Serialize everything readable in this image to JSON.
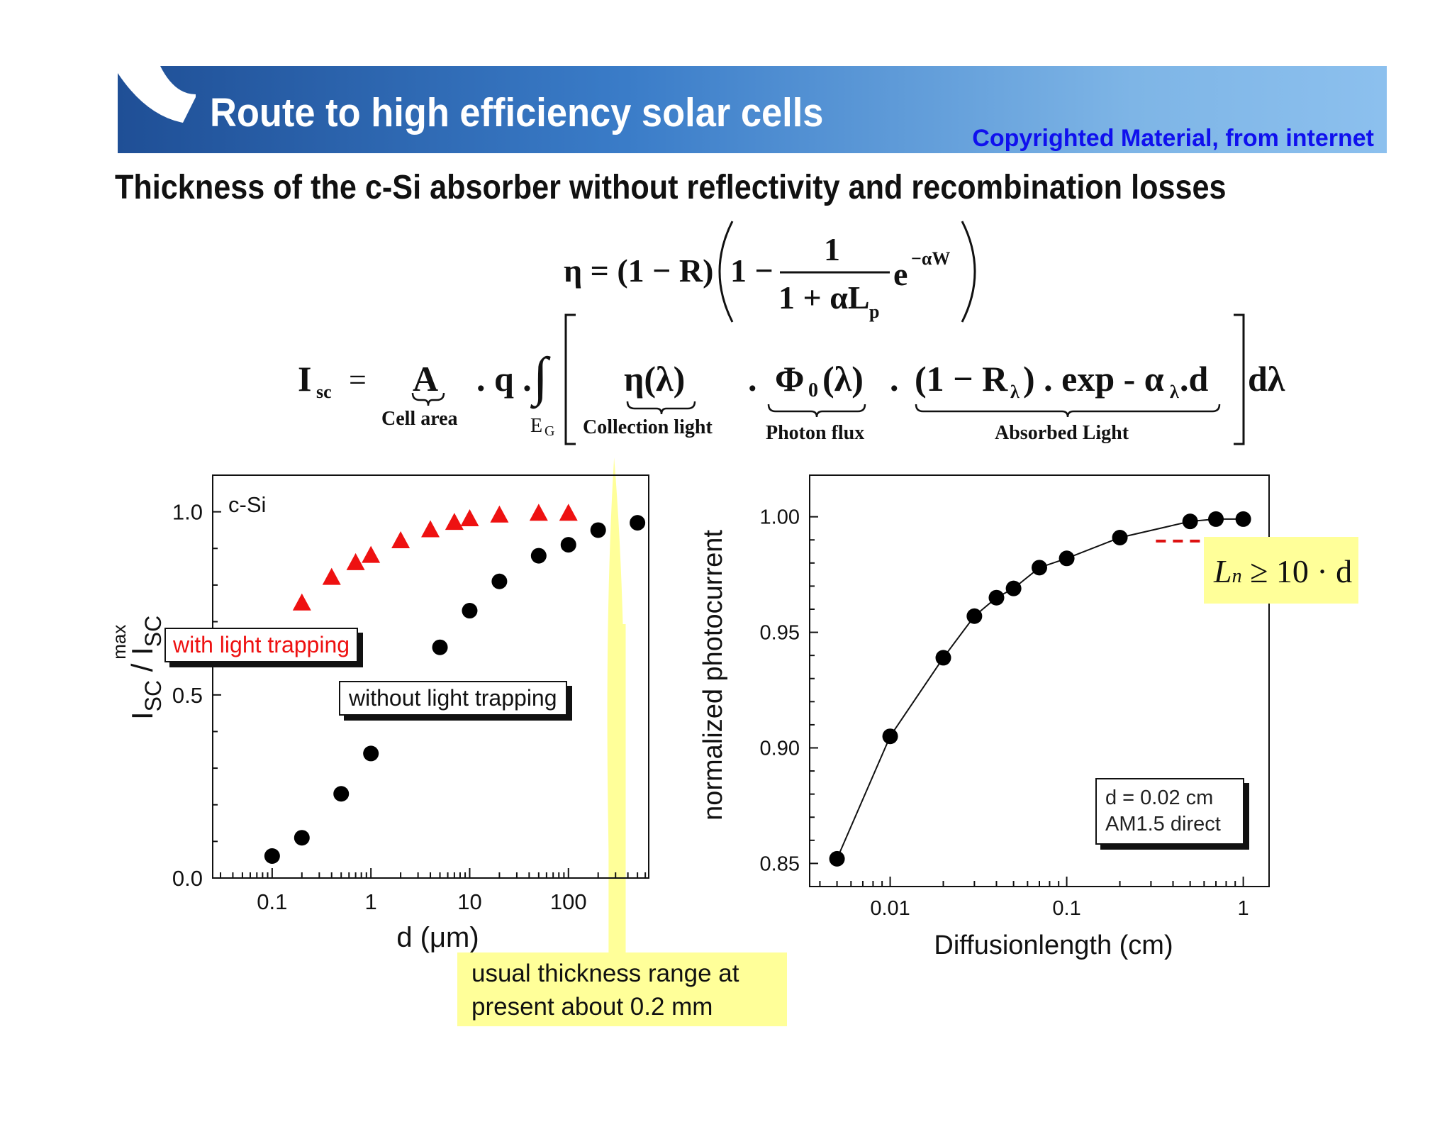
{
  "header": {
    "title": "Route to high efficiency solar cells",
    "copyright": "Copyrighted Material, from internet",
    "subtitle": "Thickness of the c-Si absorber without reflectivity and recombination losses"
  },
  "equations": {
    "eta_lhs": "η = (1 − R)",
    "one": "1",
    "minus": "1 −",
    "frac_num": "1",
    "frac_den": "1 + αL",
    "frac_den_sub": "p",
    "exp_base": "e",
    "exp_power": "−αW",
    "isc": "I",
    "isc_sub": "sc",
    "equals": "=",
    "A": "A",
    "q": ". q .",
    "integral": "∫",
    "eg": "E",
    "eg_sub": "G",
    "eta_lambda": "η(λ)",
    "dot1": ".",
    "phi": "Φ",
    "phi_sub": "0",
    "phi_arg": "(λ)",
    "dot2": ".",
    "absorbed_expr": "(1 − R",
    "absorbed_sub": "λ",
    "absorbed_expr2": ") . exp - α",
    "absorbed_sub2": "λ",
    "absorbed_expr3": " .d",
    "dlambda": "dλ",
    "label_cell_area": "Cell  area",
    "label_collection": "Collection  light",
    "label_photon": "Photon flux",
    "label_absorbed": "Absorbed Light"
  },
  "chart_data": [
    {
      "type": "scatter",
      "xscale": "log",
      "xlabel": "d (μm)",
      "ylabel": "I_SC / I_SC^max",
      "ylabel_main": "I",
      "ylabel_sub1": "SC",
      "ylabel_mid": " / I",
      "ylabel_sub2": "SC",
      "ylabel_sup": "max",
      "xlim": [
        0.025,
        650
      ],
      "ylim": [
        0.0,
        1.1
      ],
      "xticks": [
        0.1,
        1,
        10,
        100
      ],
      "xtick_labels": [
        "0.1",
        "1",
        "10",
        "100"
      ],
      "yticks": [
        0.0,
        0.5,
        1.0
      ],
      "ytick_labels": [
        "0.0",
        "0.5",
        "1.0"
      ],
      "annotation": "c-Si",
      "series": [
        {
          "name": "with light trapping",
          "marker": "triangle",
          "color": "#ee1111",
          "x": [
            0.2,
            0.4,
            0.7,
            1,
            2,
            4,
            7,
            10,
            20,
            50,
            100
          ],
          "y": [
            0.75,
            0.82,
            0.86,
            0.88,
            0.92,
            0.95,
            0.97,
            0.98,
            0.99,
            0.995,
            0.995
          ]
        },
        {
          "name": "without light trapping",
          "marker": "circle",
          "color": "#000000",
          "x": [
            0.1,
            0.2,
            0.5,
            1,
            5,
            10,
            20,
            50,
            100,
            200,
            500
          ],
          "y": [
            0.06,
            0.11,
            0.23,
            0.34,
            0.63,
            0.73,
            0.81,
            0.88,
            0.91,
            0.95,
            0.97
          ]
        }
      ],
      "highlight_label": "usual thickness range at present about 0.2 mm",
      "highlight_line1": "usual thickness range at",
      "highlight_line2": "present about 0.2 mm",
      "highlight_color": "#ffff99"
    },
    {
      "type": "line",
      "xscale": "log",
      "xlabel": "Diffusionlength (cm)",
      "ylabel": "normalized photocurrent",
      "xlim": [
        0.0035,
        1.4
      ],
      "ylim": [
        0.84,
        1.018
      ],
      "xticks": [
        0.01,
        0.1,
        1
      ],
      "xtick_labels": [
        "0.01",
        "0.1",
        "1"
      ],
      "yticks": [
        0.85,
        0.9,
        0.95,
        1.0
      ],
      "ytick_labels": [
        "0.85",
        "0.90",
        "0.95",
        "1.00"
      ],
      "series": [
        {
          "marker": "circle",
          "color": "#000000",
          "x": [
            0.005,
            0.01,
            0.02,
            0.03,
            0.04,
            0.05,
            0.07,
            0.1,
            0.2,
            0.5,
            0.7,
            1.0
          ],
          "y": [
            0.852,
            0.905,
            0.939,
            0.957,
            0.965,
            0.969,
            0.978,
            0.982,
            0.991,
            0.998,
            0.999,
            0.999
          ]
        }
      ],
      "legend_line1": "d = 0.02 cm",
      "legend_line2": "AM1.5 direct",
      "annotation_formula": "L",
      "annotation_formula_sub": "n",
      "annotation_formula_rest": " ≥ 10 · d",
      "annotation_color": "#ffff99",
      "dash_color": "#dd1111"
    }
  ]
}
